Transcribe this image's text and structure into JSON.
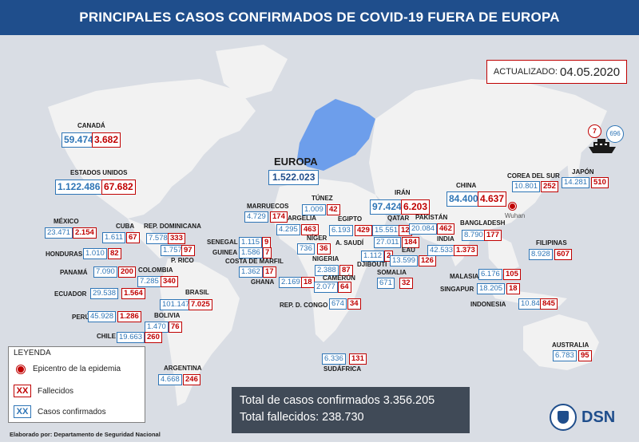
{
  "title": "PRINCIPALES CASOS CONFIRMADOS DE COVID-19 FUERA DE EUROPA",
  "updated": {
    "label": "ACTUALIZADO:",
    "date": "04.05.2020"
  },
  "europa": {
    "name": "EUROPA",
    "confirmed": "1.522.023"
  },
  "countries": [
    {
      "key": "canada",
      "name": "CANADÁ",
      "confirmed": "59.474",
      "deaths": "3.682"
    },
    {
      "key": "usa",
      "name": "ESTADOS UNIDOS",
      "confirmed": "1.122.486",
      "deaths": "67.682"
    },
    {
      "key": "mexico",
      "name": "MÉXICO",
      "confirmed": "23.471",
      "deaths": "2.154"
    },
    {
      "key": "cuba",
      "name": "CUBA",
      "confirmed": "1.611",
      "deaths": "67"
    },
    {
      "key": "repdom",
      "name": "REP. DOMINICANA",
      "confirmed": "7.578",
      "deaths": "333"
    },
    {
      "key": "honduras",
      "name": "HONDURAS",
      "confirmed": "1.010",
      "deaths": "82"
    },
    {
      "key": "prico",
      "name": "P. RICO",
      "confirmed": "1.757",
      "deaths": "97"
    },
    {
      "key": "panama",
      "name": "PANAMÁ",
      "confirmed": "7.090",
      "deaths": "200"
    },
    {
      "key": "colombia",
      "name": "COLOMBIA",
      "confirmed": "7.285",
      "deaths": "340"
    },
    {
      "key": "ecuador",
      "name": "ECUADOR",
      "confirmed": "29.538",
      "deaths": "1.564"
    },
    {
      "key": "brasil",
      "name": "BRASIL",
      "confirmed": "101.147",
      "deaths": "7.025"
    },
    {
      "key": "peru",
      "name": "PERÚ",
      "confirmed": "45.928",
      "deaths": "1.286"
    },
    {
      "key": "bolivia",
      "name": "BOLIVIA",
      "confirmed": "1.470",
      "deaths": "76"
    },
    {
      "key": "chile",
      "name": "CHILE",
      "confirmed": "19.663",
      "deaths": "260"
    },
    {
      "key": "argentina",
      "name": "ARGENTINA",
      "confirmed": "4.668",
      "deaths": "246"
    },
    {
      "key": "marruecos",
      "name": "MARRUECOS",
      "confirmed": "4.729",
      "deaths": "174"
    },
    {
      "key": "tunez",
      "name": "TÚNEZ",
      "confirmed": "1.009",
      "deaths": "42"
    },
    {
      "key": "argelia",
      "name": "ARGELIA",
      "confirmed": "4.295",
      "deaths": "463"
    },
    {
      "key": "egipto",
      "name": "EGIPTO",
      "confirmed": "6.193",
      "deaths": "429"
    },
    {
      "key": "senegal",
      "name": "SENEGAL",
      "confirmed": "1.115",
      "deaths": "9"
    },
    {
      "key": "niger",
      "name": "NÍGER",
      "confirmed": "736",
      "deaths": "36"
    },
    {
      "key": "guinea",
      "name": "GUINEA",
      "confirmed": "1.586",
      "deaths": "7"
    },
    {
      "key": "costamarfil",
      "name": "COSTA DE MARFIL",
      "confirmed": "1.362",
      "deaths": "17"
    },
    {
      "key": "nigeria",
      "name": "NIGERIA",
      "confirmed": "2.388",
      "deaths": "87"
    },
    {
      "key": "ghana",
      "name": "GHANA",
      "confirmed": "2.169",
      "deaths": "18"
    },
    {
      "key": "camerun",
      "name": "CAMERÚN",
      "confirmed": "2.077",
      "deaths": "64"
    },
    {
      "key": "djibouti",
      "name": "DJIBOUTI",
      "confirmed": "1.112",
      "deaths": "2"
    },
    {
      "key": "somalia",
      "name": "SOMALIA",
      "confirmed": "671",
      "deaths": "32"
    },
    {
      "key": "rdcongo",
      "name": "REP. D. CONGO",
      "confirmed": "674",
      "deaths": "34"
    },
    {
      "key": "sudafrica",
      "name": "SUDÁFRICA",
      "confirmed": "6.336",
      "deaths": "131"
    },
    {
      "key": "iran",
      "name": "IRÁN",
      "confirmed": "97.424",
      "deaths": "6.203"
    },
    {
      "key": "qatar",
      "name": "QATAR",
      "confirmed": "15.551",
      "deaths": "12"
    },
    {
      "key": "arabia",
      "name": "A. SAUDÍ",
      "confirmed": "27.011",
      "deaths": "184"
    },
    {
      "key": "eau",
      "name": "EAU",
      "confirmed": "13.599",
      "deaths": "126"
    },
    {
      "key": "pakistan",
      "name": "PAKISTÁN",
      "confirmed": "20.084",
      "deaths": "462"
    },
    {
      "key": "india",
      "name": "INDIA",
      "confirmed": "42.533",
      "deaths": "1.373"
    },
    {
      "key": "bangladesh",
      "name": "BANGLADESH",
      "confirmed": "8.790",
      "deaths": "177"
    },
    {
      "key": "china",
      "name": "CHINA",
      "confirmed": "84.400",
      "deaths": "4.637"
    },
    {
      "key": "corea",
      "name": "COREA DEL SUR",
      "confirmed": "10.801",
      "deaths": "252"
    },
    {
      "key": "japon",
      "name": "JAPÓN",
      "confirmed": "14.281",
      "deaths": "510"
    },
    {
      "key": "filipinas",
      "name": "FILIPINAS",
      "confirmed": "8.928",
      "deaths": "607"
    },
    {
      "key": "malasia",
      "name": "MALASIA",
      "confirmed": "6.176",
      "deaths": "105"
    },
    {
      "key": "singapur",
      "name": "SINGAPUR",
      "confirmed": "18.205",
      "deaths": "18"
    },
    {
      "key": "indonesia",
      "name": "INDONESIA",
      "confirmed": "10.843",
      "deaths": "845"
    },
    {
      "key": "australia",
      "name": "AUSTRALIA",
      "confirmed": "6.783",
      "deaths": "95"
    }
  ],
  "ship": {
    "deaths": "7",
    "confirmed": "696"
  },
  "epicenter": {
    "name": "Wuhan"
  },
  "legend": {
    "title": "LEYENDA",
    "epicenter": "Epicentro de la epidemia",
    "deaths_swatch": "XX",
    "deaths": "Fallecidos",
    "confirmed_swatch": "XX",
    "confirmed": "Casos confirmados"
  },
  "totals": {
    "confirmed": "Total de casos confirmados 3.356.205",
    "deaths": "Total fallecidos: 238.730"
  },
  "footer": "Elaborado por: Departamento de Seguridad Nacional",
  "logo": "DSN",
  "colors": {
    "header": "#1f4e8c",
    "confirmed": "#2e75b6",
    "deaths": "#c00000",
    "europe": "#6d9eeb",
    "land": "#f2f2f2",
    "sea": "#d9dde4"
  }
}
